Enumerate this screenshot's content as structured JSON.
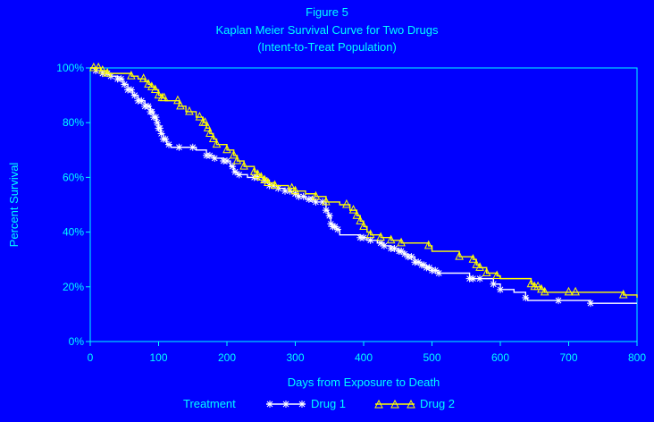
{
  "titles": {
    "line1": "Figure 5",
    "line2": "Kaplan Meier Survival Curve for Two Drugs",
    "line3": "(Intent-to-Treat Population)"
  },
  "legend": {
    "title": "Treatment",
    "position": "bottom"
  },
  "colors": {
    "background": "#0000ff",
    "text": "#00ffff",
    "drug1": "#ffffff",
    "drug2": "#ffff00"
  },
  "chart_data": {
    "type": "line",
    "step": true,
    "xlabel": "Days from Exposure to Death",
    "ylabel": "Percent Survival",
    "xlim": [
      0,
      800
    ],
    "ylim": [
      0,
      100
    ],
    "xticks": [
      0,
      100,
      200,
      300,
      400,
      500,
      600,
      700,
      800
    ],
    "yticks": [
      0,
      20,
      40,
      60,
      80,
      100
    ],
    "xtick_labels": [
      "0",
      "100",
      "200",
      "300",
      "400",
      "500",
      "600",
      "700",
      "800"
    ],
    "ytick_labels": [
      "0%",
      "20%",
      "40%",
      "60%",
      "80%",
      "100%"
    ],
    "grid": false,
    "series": [
      {
        "name": "Drug 1",
        "marker": "star",
        "points": [
          [
            0,
            100
          ],
          [
            8,
            99
          ],
          [
            18,
            98
          ],
          [
            30,
            97
          ],
          [
            40,
            96
          ],
          [
            48,
            94
          ],
          [
            55,
            92
          ],
          [
            62,
            90
          ],
          [
            70,
            88
          ],
          [
            80,
            86
          ],
          [
            88,
            84
          ],
          [
            93,
            82
          ],
          [
            97,
            80
          ],
          [
            100,
            78
          ],
          [
            103,
            76
          ],
          [
            107,
            74
          ],
          [
            112,
            72
          ],
          [
            118,
            71
          ],
          [
            155,
            70
          ],
          [
            170,
            68
          ],
          [
            180,
            67
          ],
          [
            195,
            66
          ],
          [
            205,
            64
          ],
          [
            210,
            62
          ],
          [
            215,
            61
          ],
          [
            230,
            60
          ],
          [
            255,
            59
          ],
          [
            262,
            57
          ],
          [
            275,
            56
          ],
          [
            285,
            55
          ],
          [
            295,
            54
          ],
          [
            305,
            53
          ],
          [
            315,
            52
          ],
          [
            330,
            51
          ],
          [
            345,
            48
          ],
          [
            348,
            46
          ],
          [
            352,
            43
          ],
          [
            355,
            42
          ],
          [
            360,
            41
          ],
          [
            365,
            39
          ],
          [
            395,
            38
          ],
          [
            405,
            37
          ],
          [
            420,
            36
          ],
          [
            430,
            35
          ],
          [
            440,
            34
          ],
          [
            450,
            33
          ],
          [
            460,
            32
          ],
          [
            465,
            31
          ],
          [
            475,
            29
          ],
          [
            485,
            28
          ],
          [
            492,
            27
          ],
          [
            500,
            26
          ],
          [
            510,
            25
          ],
          [
            555,
            23
          ],
          [
            590,
            21
          ],
          [
            600,
            19
          ],
          [
            620,
            18
          ],
          [
            637,
            16
          ],
          [
            640,
            15
          ],
          [
            685,
            15
          ],
          [
            732,
            14
          ],
          [
            800,
            14
          ]
        ],
        "marker_x": [
          8,
          18,
          25,
          30,
          40,
          45,
          50,
          55,
          60,
          65,
          70,
          75,
          80,
          85,
          88,
          90,
          93,
          96,
          98,
          100,
          102,
          104,
          107,
          110,
          115,
          130,
          150,
          170,
          175,
          182,
          195,
          200,
          208,
          212,
          218,
          240,
          245,
          255,
          262,
          268,
          275,
          285,
          292,
          300,
          305,
          312,
          320,
          325,
          330,
          340,
          345,
          350,
          352,
          355,
          358,
          362,
          395,
          400,
          410,
          425,
          430,
          440,
          445,
          452,
          455,
          460,
          465,
          470,
          475,
          480,
          485,
          488,
          492,
          496,
          500,
          505,
          510,
          555,
          560,
          570,
          590,
          600,
          637,
          685,
          732
        ]
      },
      {
        "name": "Drug 2",
        "marker": "triangle",
        "points": [
          [
            0,
            100
          ],
          [
            15,
            99
          ],
          [
            25,
            98
          ],
          [
            60,
            97
          ],
          [
            70,
            96
          ],
          [
            80,
            95
          ],
          [
            85,
            94
          ],
          [
            90,
            93
          ],
          [
            95,
            92
          ],
          [
            100,
            90
          ],
          [
            105,
            89
          ],
          [
            110,
            88
          ],
          [
            130,
            86
          ],
          [
            140,
            84
          ],
          [
            155,
            82
          ],
          [
            165,
            80
          ],
          [
            170,
            78
          ],
          [
            175,
            76
          ],
          [
            180,
            74
          ],
          [
            185,
            72
          ],
          [
            200,
            70
          ],
          [
            210,
            68
          ],
          [
            215,
            66
          ],
          [
            225,
            64
          ],
          [
            240,
            62
          ],
          [
            245,
            61
          ],
          [
            250,
            60
          ],
          [
            255,
            59
          ],
          [
            260,
            58
          ],
          [
            270,
            57
          ],
          [
            290,
            56
          ],
          [
            300,
            55
          ],
          [
            315,
            54
          ],
          [
            330,
            53
          ],
          [
            345,
            51
          ],
          [
            365,
            50
          ],
          [
            380,
            48
          ],
          [
            390,
            46
          ],
          [
            395,
            44
          ],
          [
            400,
            42
          ],
          [
            405,
            40
          ],
          [
            410,
            39
          ],
          [
            425,
            38
          ],
          [
            440,
            37
          ],
          [
            455,
            36
          ],
          [
            495,
            35
          ],
          [
            500,
            33
          ],
          [
            540,
            31
          ],
          [
            560,
            30
          ],
          [
            565,
            28
          ],
          [
            570,
            27
          ],
          [
            580,
            25
          ],
          [
            595,
            24
          ],
          [
            600,
            23
          ],
          [
            645,
            21
          ],
          [
            650,
            20
          ],
          [
            660,
            19
          ],
          [
            665,
            18
          ],
          [
            700,
            18
          ],
          [
            780,
            17
          ],
          [
            800,
            16
          ]
        ],
        "marker_x": [
          5,
          12,
          18,
          25,
          60,
          78,
          85,
          90,
          95,
          100,
          105,
          108,
          128,
          132,
          145,
          160,
          165,
          168,
          172,
          175,
          180,
          185,
          200,
          210,
          215,
          225,
          240,
          245,
          250,
          255,
          260,
          270,
          295,
          300,
          330,
          345,
          375,
          385,
          390,
          395,
          400,
          410,
          425,
          440,
          455,
          495,
          540,
          560,
          565,
          570,
          580,
          595,
          645,
          650,
          655,
          660,
          665,
          700,
          710,
          780
        ]
      }
    ]
  }
}
